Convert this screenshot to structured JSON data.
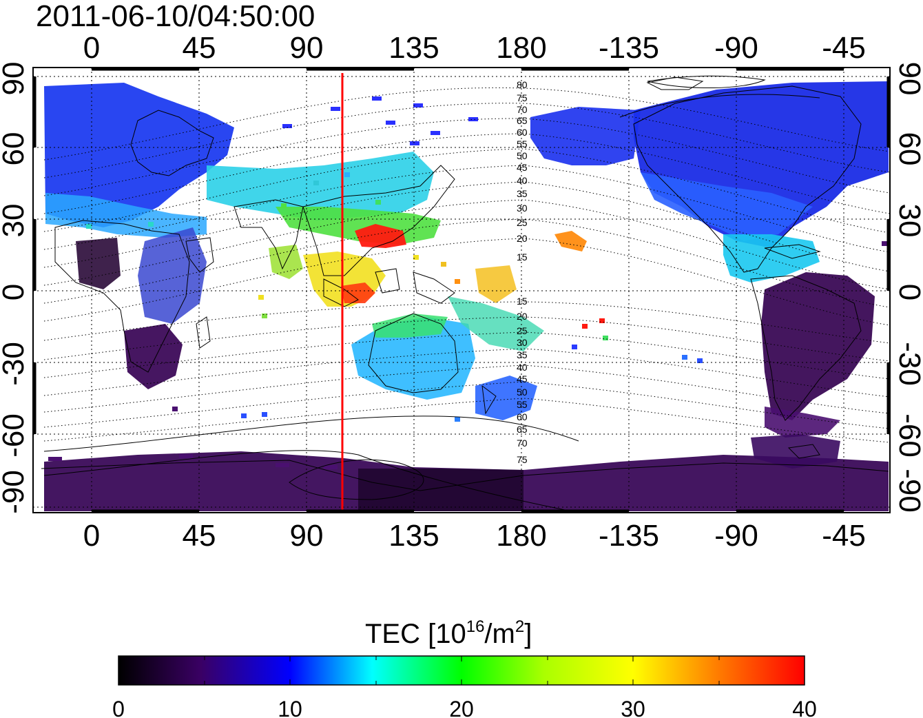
{
  "timestamp": "2011-06-10/04:50:00",
  "map": {
    "lon_ticks_top": [
      "0",
      "45",
      "90",
      "135",
      "180",
      "-135",
      "-90",
      "-45"
    ],
    "lon_ticks_bottom": [
      "0",
      "45",
      "90",
      "135",
      "180",
      "-135",
      "-90",
      "-45"
    ],
    "lat_ticks_left": [
      "90",
      "60",
      "30",
      "0",
      "-30",
      "-60",
      "-90"
    ],
    "lat_ticks_right": [
      "90",
      "60",
      "30",
      "0",
      "-30",
      "-60",
      "-90"
    ],
    "contour_labels_north": [
      "80",
      "75",
      "70",
      "65",
      "60",
      "55",
      "50",
      "45",
      "40",
      "35",
      "30",
      "25",
      "20",
      "15"
    ],
    "contour_labels_south": [
      "15",
      "20",
      "25",
      "30",
      "35",
      "40",
      "45",
      "50",
      "55",
      "60",
      "65",
      "70",
      "75"
    ],
    "marker_longitude": 105,
    "marker_color": "#ff0000"
  },
  "colorbar": {
    "title_prefix": "TEC  [10",
    "title_sup_exp": "16",
    "title_mid": "/m",
    "title_sup_sq": "2",
    "title_suffix": "]",
    "tick_labels": [
      "0",
      "10",
      "20",
      "30",
      "40"
    ],
    "min": 0,
    "max": 40,
    "colors": [
      "#000000",
      "#3a0064",
      "#0000ff",
      "#00ffff",
      "#00ff00",
      "#ffff00",
      "#ff8000",
      "#ff0000"
    ]
  }
}
